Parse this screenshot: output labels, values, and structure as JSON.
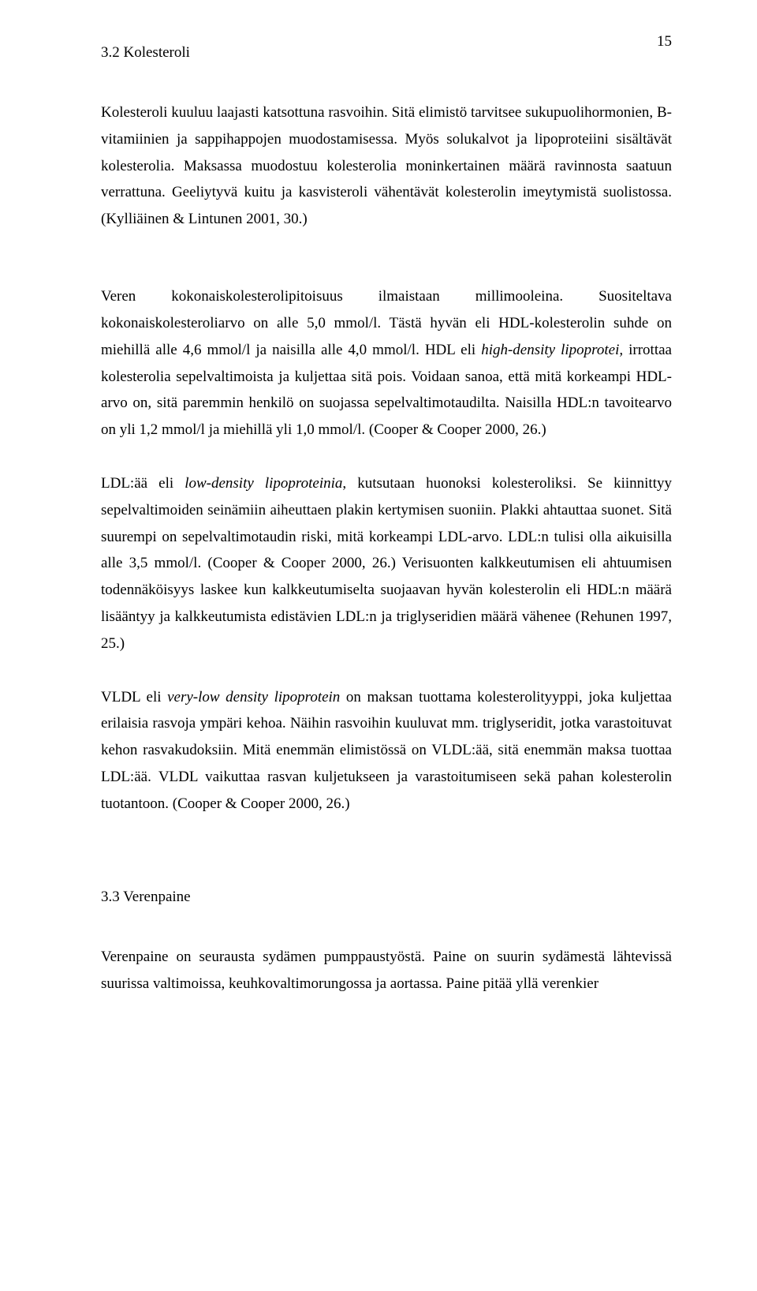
{
  "page_number": "15",
  "heading_1": "3.2 Kolesteroli",
  "p1": "Kolesteroli kuuluu laajasti katsottuna rasvoihin. Sitä elimistö tarvitsee sukupuolihormonien, B-vitamiinien ja sappihappojen muodostamisessa. Myös solukalvot ja lipoproteiini sisältävät kolesterolia. Maksassa muodostuu kolesterolia moninkertainen määrä ravinnosta saatuun verrattuna. Geeliytyvä kuitu ja kasvisteroli vähentävät kolesterolin imeytymistä suolistossa. (Kylliäinen & Lintunen 2001, 30.)",
  "p2_a": "Veren kokonaiskolesterolipitoisuus ilmaistaan millimooleina. Suositeltava kokonaiskolesteroliarvo on alle 5,0 mmol/l. Tästä hyvän eli HDL-kolesterolin suhde on miehillä alle 4,6 mmol/l ja naisilla alle 4,0 mmol/l. HDL eli ",
  "p2_i1": "high-density lipoprotei, ",
  "p2_b": "irrottaa kolesterolia sepelvaltimoista ja kuljettaa sitä pois. Voidaan sanoa, että mitä korkeampi HDL-arvo on, sitä paremmin henkilö on suojassa sepelvaltimotaudilta. Naisilla HDL:n tavoitearvo on yli 1,2 mmol/l ja miehillä yli 1,0 mmol/l. (Cooper & Cooper 2000, 26.)",
  "p3_a": "LDL:ää eli ",
  "p3_i1": "low-density lipoproteinia",
  "p3_b": ", kutsutaan huonoksi kolesteroliksi. Se kiinnittyy sepelvaltimoiden seinämiin aiheuttaen plakin kertymisen suoniin. Plakki ahtauttaa suonet. Sitä suurempi on sepelvaltimotaudin riski, mitä korkeampi LDL-arvo. LDL:n tulisi olla aikuisilla alle 3,5 mmol/l. (Cooper & Cooper 2000, 26.) Verisuonten kalkkeutumisen eli ahtuumisen todennäköisyys laskee kun kalkkeutumiselta suojaavan hyvän kolesterolin eli HDL:n määrä lisääntyy ja kalkkeutumista edistävien LDL:n ja triglyseridien määrä vähenee (Rehunen 1997, 25.)",
  "p4_a": "VLDL eli ",
  "p4_i1": "very-low density lipoprotein",
  "p4_b": " on maksan tuottama kolesterolityyppi, joka kuljettaa erilaisia rasvoja ympäri kehoa. Näihin rasvoihin kuuluvat mm. triglyseridit, jotka varastoituvat kehon rasvakudoksiin. Mitä enemmän elimistössä on VLDL:ää, sitä enemmän maksa tuottaa LDL:ää. VLDL vaikuttaa rasvan kuljetukseen ja varastoitumiseen sekä pahan kolesterolin tuotantoon. (Cooper & Cooper 2000, 26.)",
  "heading_2": "3.3 Verenpaine",
  "p5": "Verenpaine on seurausta sydämen pumppaustyöstä. Paine on suurin sydämestä lähtevissä suurissa valtimoissa, keuhkovaltimorungossa ja aortassa. Paine pitää yllä verenkier"
}
